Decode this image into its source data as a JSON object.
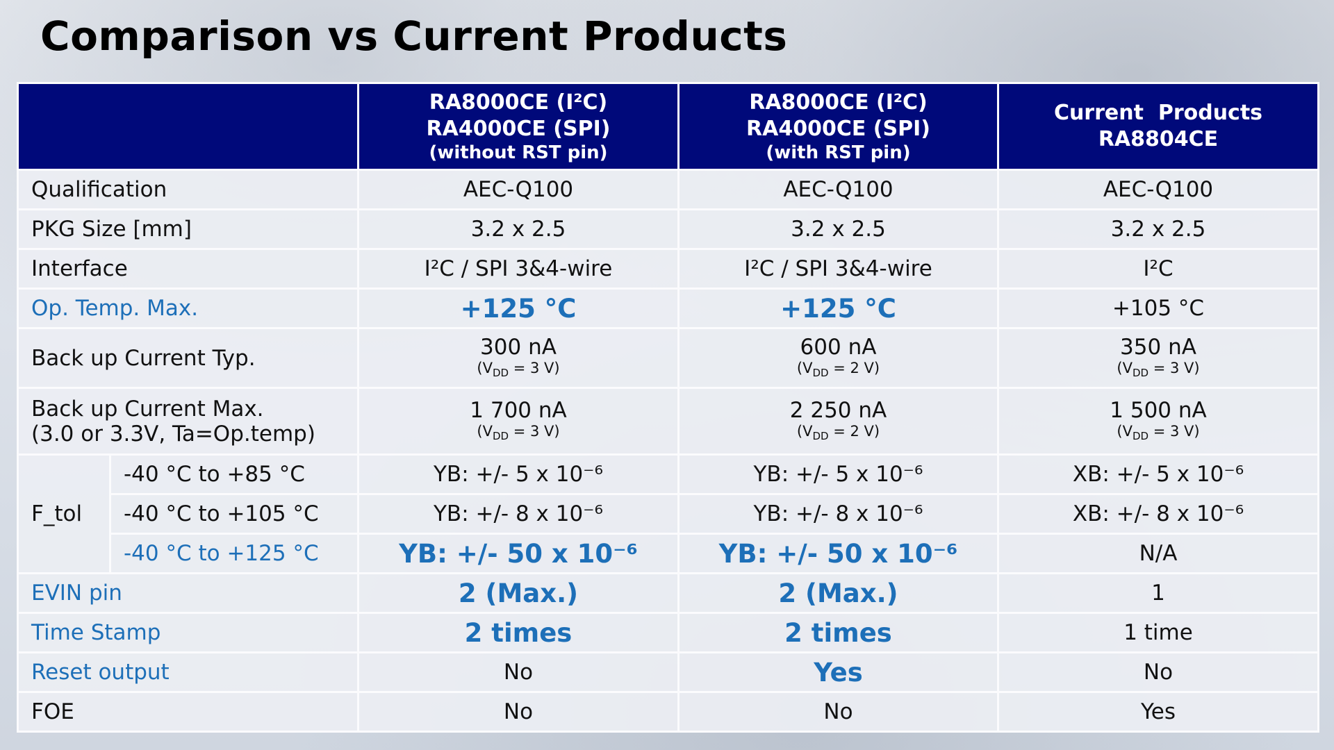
{
  "title": "Comparison vs Current Products",
  "table": {
    "header": [
      {
        "lines": [
          "RA8000CE (I²C)",
          "RA4000CE (SPI)",
          "(without RST pin)"
        ]
      },
      {
        "lines": [
          "RA8000CE (I²C)",
          "RA4000CE (SPI)",
          "(with RST pin)"
        ]
      },
      {
        "lines": [
          "Current  Products",
          "RA8804CE"
        ]
      }
    ],
    "rows": [
      {
        "label": "Qualification",
        "cells": [
          "AEC-Q100",
          "AEC-Q100",
          "AEC-Q100"
        ]
      },
      {
        "label": "PKG Size [mm]",
        "cells": [
          "3.2 x 2.5",
          "3.2 x 2.5",
          "3.2 x 2.5"
        ]
      },
      {
        "label": "Interface",
        "cells": [
          "I²C / SPI 3&4-wire",
          "I²C / SPI 3&4-wire",
          "I²C"
        ]
      },
      {
        "label": "Op. Temp. Max.",
        "cells": [
          "+125 °C",
          "+125 °C",
          "+105 °C"
        ]
      },
      {
        "label": "Back up Current Typ.",
        "cells": [
          {
            "value": "300 nA",
            "condition": {
              "pre": "(V",
              "sub": "DD",
              "post": " = 3 V)"
            }
          },
          {
            "value": "600 nA",
            "condition": {
              "pre": "(V",
              "sub": "DD",
              "post": " = 2 V)"
            }
          },
          {
            "value": "350 nA",
            "condition": {
              "pre": "(V",
              "sub": "DD",
              "post": " = 3 V)"
            }
          }
        ]
      },
      {
        "label": [
          "Back up Current Max.",
          "(3.0 or 3.3V, Ta=Op.temp)"
        ],
        "cells": [
          {
            "value": "1 700 nA",
            "condition": {
              "pre": "(V",
              "sub": "DD",
              "post": " = 3 V)"
            }
          },
          {
            "value": "2 250 nA",
            "condition": {
              "pre": "(V",
              "sub": "DD",
              "post": " = 2 V)"
            }
          },
          {
            "value": "1 500 nA",
            "condition": {
              "pre": "(V",
              "sub": "DD",
              "post": " = 3 V)"
            }
          }
        ]
      },
      {
        "label": "F_tol",
        "subrows": [
          {
            "label": "-40 °C to +85 °C",
            "cells": [
              "YB: +/- 5 x 10⁻⁶",
              "YB: +/- 5 x 10⁻⁶",
              "XB: +/- 5 x 10⁻⁶"
            ]
          },
          {
            "label": "-40 °C to +105 °C",
            "cells": [
              "YB: +/- 8 x 10⁻⁶",
              "YB: +/- 8 x 10⁻⁶",
              "XB: +/- 8 x 10⁻⁶"
            ]
          },
          {
            "label": "-40 °C to +125 °C",
            "cells": [
              "YB: +/- 50 x 10⁻⁶",
              "YB: +/- 50 x 10⁻⁶",
              "N/A"
            ]
          }
        ]
      },
      {
        "label": "EVIN pin",
        "cells": [
          "2 (Max.)",
          "2 (Max.)",
          "1"
        ]
      },
      {
        "label": "Time Stamp",
        "cells": [
          "2 times",
          "2 times",
          "1 time"
        ]
      },
      {
        "label": "Reset output",
        "cells": [
          "No",
          "Yes",
          "No"
        ]
      },
      {
        "label": "FOE",
        "cells": [
          "No",
          "No",
          "Yes"
        ]
      }
    ]
  }
}
